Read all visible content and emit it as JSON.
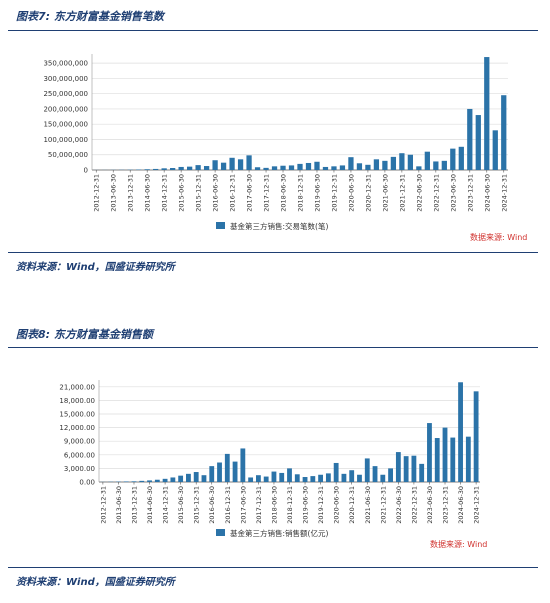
{
  "charts": [
    {
      "fig_title": "图表7: 东方财富基金销售笔数",
      "source_note": "资料来源：Wind，国盛证券研究所"
    },
    {
      "fig_title": "图表8: 东方财富基金销售额",
      "source_note": "资料来源：Wind，国盛证券研究所"
    }
  ],
  "chart_data": [
    {
      "type": "bar",
      "categories": [
        "2012-12-31",
        "2013-03-31",
        "2013-06-30",
        "2013-09-30",
        "2013-12-31",
        "2014-03-31",
        "2014-06-30",
        "2014-09-30",
        "2014-12-31",
        "2015-03-31",
        "2015-06-30",
        "2015-09-30",
        "2015-12-31",
        "2016-03-31",
        "2016-06-30",
        "2016-09-30",
        "2016-12-31",
        "2017-03-31",
        "2017-06-30",
        "2017-09-30",
        "2017-12-31",
        "2018-03-31",
        "2018-06-30",
        "2018-09-30",
        "2018-12-31",
        "2019-03-31",
        "2019-06-30",
        "2019-09-30",
        "2019-12-31",
        "2020-03-31",
        "2020-06-30",
        "2020-09-30",
        "2020-12-31",
        "2021-03-31",
        "2021-06-30",
        "2021-09-30",
        "2021-12-31",
        "2022-03-31",
        "2022-06-30",
        "2022-09-30",
        "2022-12-31",
        "2023-03-31",
        "2023-06-30",
        "2023-09-30",
        "2023-12-31",
        "2024-03-31",
        "2024-06-30",
        "2024-09-30",
        "2024-12-31"
      ],
      "tick_every": 2,
      "series": [
        {
          "name": "基金第三方销售:交易笔数(笔)",
          "color": "#2b73a8",
          "values": [
            200000,
            300000,
            500000,
            700000,
            1000000,
            1500000,
            2500000,
            3500000,
            5500000,
            6500000,
            10000000,
            11000000,
            16000000,
            13000000,
            32000000,
            24000000,
            40000000,
            35000000,
            48000000,
            9000000,
            7000000,
            12000000,
            14000000,
            15000000,
            20000000,
            23000000,
            27000000,
            10000000,
            12000000,
            15000000,
            42000000,
            22000000,
            17000000,
            35000000,
            30000000,
            43000000,
            55000000,
            50000000,
            12000000,
            60000000,
            28000000,
            30000000,
            70000000,
            76000000,
            200000000,
            180000000,
            370000000,
            130000000,
            245000000
          ]
        }
      ],
      "yticks": [
        0,
        50000000,
        100000000,
        150000000,
        200000000,
        250000000,
        300000000,
        350000000
      ],
      "ytick_labels": [
        "0",
        "50,000,000",
        "100,000,000",
        "150,000,000",
        "200,000,000",
        "250,000,000",
        "300,000,000",
        "350,000,000"
      ],
      "ylim": [
        0,
        380000000
      ],
      "legend_position": "bottom",
      "data_source": "数据来源: Wind"
    },
    {
      "type": "bar",
      "categories": [
        "2012-12-31",
        "2013-03-31",
        "2013-06-30",
        "2013-09-30",
        "2013-12-31",
        "2014-03-31",
        "2014-06-30",
        "2014-09-30",
        "2014-12-31",
        "2015-03-31",
        "2015-06-30",
        "2015-09-30",
        "2015-12-31",
        "2016-03-31",
        "2016-06-30",
        "2016-09-30",
        "2016-12-31",
        "2017-03-31",
        "2017-06-30",
        "2017-09-30",
        "2017-12-31",
        "2018-03-31",
        "2018-06-30",
        "2018-09-30",
        "2018-12-31",
        "2019-03-31",
        "2019-06-30",
        "2019-09-30",
        "2019-12-31",
        "2020-03-31",
        "2020-06-30",
        "2020-09-30",
        "2020-12-31",
        "2021-03-31",
        "2021-06-30",
        "2021-09-30",
        "2021-12-31",
        "2022-03-31",
        "2022-06-30",
        "2022-09-30",
        "2022-12-31",
        "2023-03-31",
        "2023-06-30",
        "2023-09-30",
        "2023-12-31",
        "2024-03-31",
        "2024-06-30",
        "2024-09-30",
        "2024-12-31"
      ],
      "tick_every": 2,
      "series": [
        {
          "name": "基金第三方销售:销售额(亿元)",
          "color": "#2b73a8",
          "values": [
            30,
            60,
            90,
            120,
            150,
            250,
            350,
            500,
            700,
            1000,
            1400,
            1800,
            2200,
            1500,
            3500,
            4300,
            6200,
            4500,
            7400,
            1000,
            1500,
            1200,
            2300,
            2000,
            3000,
            1700,
            1100,
            1300,
            1600,
            1900,
            4200,
            1800,
            2600,
            1600,
            5200,
            3500,
            1600,
            3000,
            6600,
            5700,
            5800,
            4000,
            13000,
            9700,
            12000,
            9800,
            22000,
            10000,
            20000
          ]
        }
      ],
      "yticks": [
        0,
        3000,
        6000,
        9000,
        12000,
        15000,
        18000,
        21000
      ],
      "ytick_labels": [
        "0.00",
        "3,000.00",
        "6,000.00",
        "9,000.00",
        "12,000.00",
        "15,000.00",
        "18,000.00",
        "21,000.00"
      ],
      "ylim": [
        0,
        22500
      ],
      "legend_position": "bottom",
      "data_source": "数据来源: Wind"
    }
  ]
}
